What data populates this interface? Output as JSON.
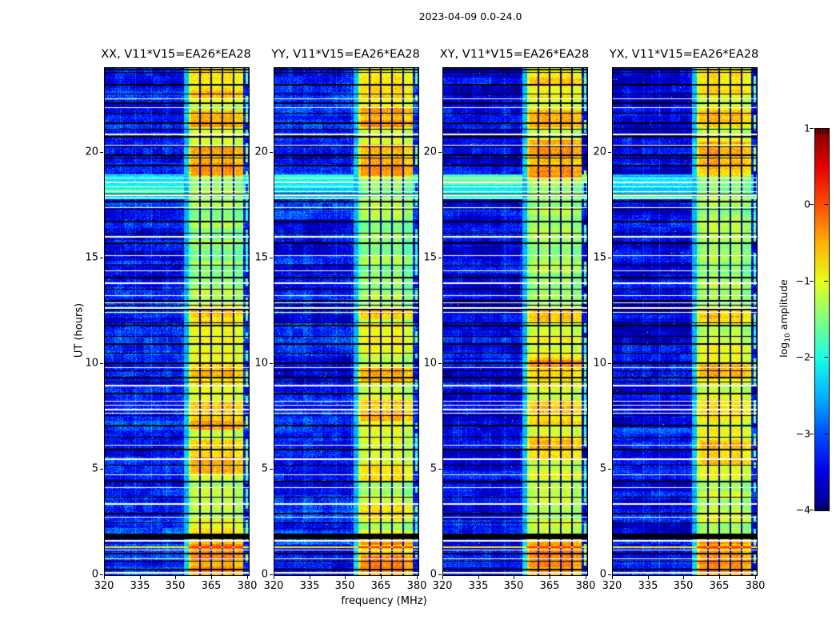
{
  "chart_data": {
    "type": "heatmap",
    "title": "2023-04-09 0.0-24.0",
    "xlabel": "frequency (MHz)",
    "ylabel": "UT (hours)",
    "x_range": [
      320,
      380.4
    ],
    "y_range": [
      0,
      24
    ],
    "x_ticks": [
      320,
      335,
      350,
      365,
      380
    ],
    "y_ticks": [
      0,
      5,
      10,
      15,
      20
    ],
    "grid": false,
    "panels": [
      {
        "id": "xx",
        "label": "XX, V11*V15=EA26*EA28"
      },
      {
        "id": "yy",
        "label": "YY, V11*V15=EA26*EA28"
      },
      {
        "id": "xy",
        "label": "XY, V11*V15=EA26*EA28"
      },
      {
        "id": "yx",
        "label": "YX, V11*V15=EA26*EA28"
      }
    ],
    "colorbar": {
      "label_prefix": "log",
      "label_sub": "10",
      "label_suffix": " amplitude",
      "range": [
        -4,
        1
      ],
      "ticks": [
        1,
        0,
        -1,
        -2,
        -3,
        -4
      ],
      "tick_labels": [
        "1",
        "0",
        "−1",
        "−2",
        "−3",
        "−4"
      ],
      "colormap": "jet"
    },
    "background": {
      "base_level": -3.33,
      "stripes_mhz": [
        326.3,
        332.8,
        339.3,
        345.8,
        352.3
      ]
    },
    "rfi_band": {
      "start_mhz": 355.2,
      "end_mhz": 378.2,
      "divider_mhz": [
        359.9,
        364.6,
        369.3,
        374.0
      ],
      "left_halo_mhz": [
        353.2,
        355.2
      ],
      "right_strip_mhz": [
        379.0,
        380.2
      ],
      "base_level": -1.05,
      "weak_hours": [
        12.75,
        18.75
      ],
      "weak_level": -1.38
    },
    "events": {
      "black_line_hours": [
        0.3,
        0.68,
        1.06,
        2.5,
        2.95,
        3.71,
        4.47,
        5.22,
        5.98,
        6.55,
        7.12,
        7.57,
        8.63,
        9.16,
        9.39,
        9.69,
        10.07,
        10.52,
        10.98,
        11.32,
        11.85,
        11.96,
        12.61,
        12.79,
        13.02,
        13.55,
        14.12,
        14.69,
        15.75,
        16.2,
        16.77,
        17.34,
        17.72,
        18.06,
        19.42,
        19.76,
        19.91,
        20.29,
        20.78,
        21.12,
        21.43,
        21.88,
        22.37,
        22.79,
        23.24,
        23.81,
        23.95
      ],
      "white_line_hours": [
        0.15,
        0.79,
        1.21,
        1.67,
        1.97,
        2.76,
        3.41,
        4.16,
        4.77,
        5.53,
        6.17,
        7.68,
        7.87,
        8.06,
        8.25,
        9.01,
        9.84,
        12.45,
        12.68,
        12.91,
        13.25,
        13.85,
        14.42,
        15.14,
        16.05,
        17.41,
        17.87,
        18.02,
        18.17,
        18.4,
        18.62,
        18.81,
        20.36,
        20.9,
        22.15,
        22.56
      ],
      "gap_hours": [
        1.7,
        1.95
      ],
      "hot_row_hours": [
        1.31
      ],
      "bright_region_hours": [
        17.78,
        18.95
      ]
    },
    "panel_hot_intervals": {
      "xx": [
        [
          0.05,
          1.68,
          0.6
        ],
        [
          2.0,
          2.6,
          0.2
        ],
        [
          4.8,
          6.4,
          0.5
        ],
        [
          6.9,
          8.25,
          0.45
        ],
        [
          9.0,
          10.1,
          0.4
        ],
        [
          11.9,
          12.7,
          0.35
        ],
        [
          18.9,
          20.3,
          0.6
        ],
        [
          21.2,
          22.0,
          0.55
        ],
        [
          22.6,
          23.9,
          0.3
        ]
      ],
      "yy": [
        [
          0.05,
          0.9,
          0.85
        ],
        [
          0.9,
          1.68,
          0.55
        ],
        [
          2.6,
          3.4,
          0.25
        ],
        [
          4.4,
          5.3,
          0.35
        ],
        [
          7.3,
          8.3,
          0.45
        ],
        [
          9.15,
          9.8,
          0.75
        ],
        [
          12.1,
          12.7,
          0.5
        ],
        [
          18.9,
          20.4,
          0.55
        ],
        [
          21.2,
          22.1,
          0.5
        ],
        [
          22.6,
          23.9,
          0.25
        ]
      ],
      "xy": [
        [
          0.05,
          1.68,
          0.7
        ],
        [
          5.4,
          6.6,
          0.45
        ],
        [
          7.1,
          8.3,
          0.45
        ],
        [
          9.2,
          10.3,
          0.5
        ],
        [
          12.0,
          12.7,
          0.35
        ],
        [
          18.8,
          20.6,
          0.6
        ],
        [
          21.2,
          22.0,
          0.45
        ],
        [
          22.6,
          23.9,
          0.3
        ]
      ],
      "yx": [
        [
          0.05,
          1.68,
          0.65
        ],
        [
          5.2,
          6.4,
          0.4
        ],
        [
          7.2,
          8.3,
          0.4
        ],
        [
          9.3,
          10.1,
          0.45
        ],
        [
          11.9,
          12.7,
          0.3
        ],
        [
          18.9,
          20.5,
          0.5
        ],
        [
          21.2,
          22.0,
          0.45
        ],
        [
          22.6,
          23.9,
          0.3
        ]
      ]
    }
  }
}
